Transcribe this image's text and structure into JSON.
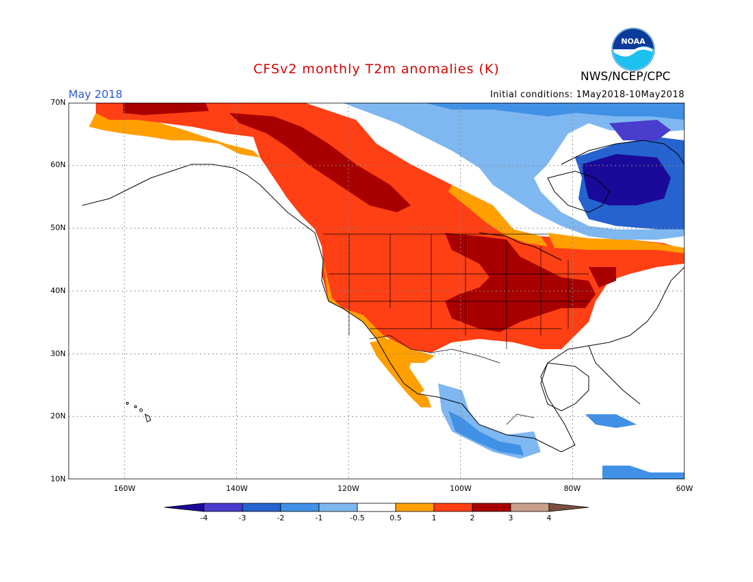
{
  "header": {
    "title": "CFSv2 monthly T2m anomalies (K)",
    "org": "NWS/NCEP/CPC",
    "period": "May 2018",
    "init": "Initial conditions: 1May2018-10May2018",
    "logo_text": "NOAA"
  },
  "axes": {
    "lat_labels": [
      "70N",
      "60N",
      "50N",
      "40N",
      "30N",
      "20N",
      "10N"
    ],
    "lon_labels": [
      "160W",
      "140W",
      "120W",
      "100W",
      "80W",
      "60W"
    ]
  },
  "colorbar": {
    "labels": [
      "-4",
      "-3",
      "-2",
      "-1",
      "-0.5",
      "0.5",
      "1",
      "2",
      "3",
      "4"
    ],
    "colors": [
      "#1b0a9a",
      "#4a3ccc",
      "#2563cf",
      "#4091e6",
      "#7fb7f0",
      "#ffffff",
      "#ff9f00",
      "#ff3f14",
      "#a80000",
      "#c8a08c",
      "#7a4e40"
    ]
  },
  "map_data": {
    "extent": {
      "lon": [
        -170,
        -60
      ],
      "lat": [
        10,
        70
      ]
    },
    "anomaly_regions": [
      {
        "name": "Western and central US warm",
        "anomaly_class": "1 to 2"
      },
      {
        "name": "Central Plains and Ohio Valley",
        "anomaly_class": "2 to 3"
      },
      {
        "name": "Western Canada / Yukon",
        "anomaly_class": "2 to 3"
      },
      {
        "name": "Labrador / northern Quebec",
        "anomaly_class": "-4 to -3"
      },
      {
        "name": "Hudson Bay band",
        "anomaly_class": "-1 to -0.5"
      },
      {
        "name": "Southern Mexico / Central America",
        "anomaly_class": "-2 to -1"
      }
    ]
  }
}
